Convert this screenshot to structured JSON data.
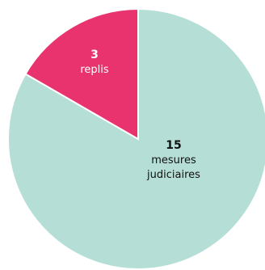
{
  "chart_data": {
    "type": "pie",
    "start_angle": "top",
    "direction": "counterclockwise-from-top-for-small-slice",
    "slices": [
      {
        "value": 15,
        "label_lines": [
          "mesures",
          "judiciaires"
        ],
        "color": "#b5dfd6",
        "text_color": "#111111"
      },
      {
        "value": 3,
        "label_lines": [
          "replis"
        ],
        "color": "#e8336f",
        "text_color": "#ffffff"
      }
    ],
    "separator_color": "#ffffff"
  }
}
